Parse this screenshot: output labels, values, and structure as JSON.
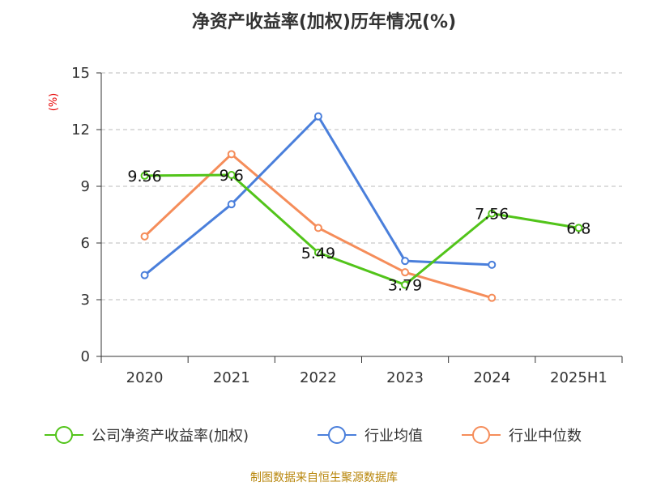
{
  "chart_data": {
    "type": "line",
    "title": "净资产收益率(加权)历年情况(%)",
    "ylabel": "(%)",
    "categories": [
      "2020",
      "2021",
      "2022",
      "2023",
      "2024",
      "2025H1"
    ],
    "yticks": [
      "0",
      "3",
      "6",
      "9",
      "12",
      "15"
    ],
    "ylim": [
      0,
      15
    ],
    "grid": true,
    "legend_position": "bottom",
    "series": [
      {
        "name": "公司净资产收益率(加权)",
        "color": "#52c41a",
        "values": [
          9.56,
          9.6,
          5.49,
          3.79,
          7.56,
          6.8
        ],
        "labels": [
          "9.56",
          "9.6",
          "5.49",
          "3.79",
          "7.56",
          "6.8"
        ]
      },
      {
        "name": "行业均值",
        "color": "#4a7fdb",
        "values": [
          4.3,
          8.05,
          12.7,
          5.05,
          4.85,
          null
        ]
      },
      {
        "name": "行业中位数",
        "color": "#f58d5a",
        "values": [
          6.35,
          10.7,
          6.8,
          4.45,
          3.1,
          null
        ]
      }
    ]
  },
  "source_text": "制图数据来自恒生聚源数据库"
}
